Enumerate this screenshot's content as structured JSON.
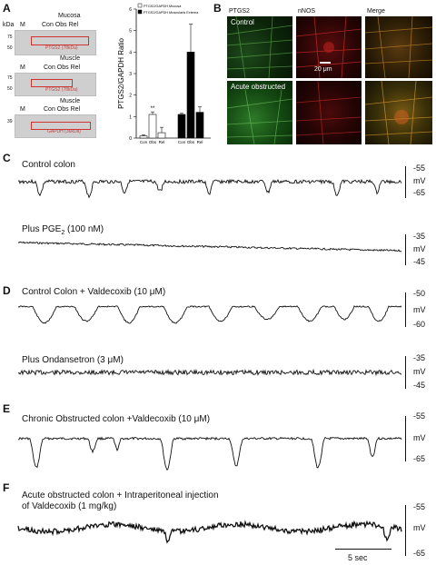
{
  "panels": {
    "A": "A",
    "B": "B",
    "C": "C",
    "D": "D",
    "E": "E",
    "F": "F"
  },
  "panelA": {
    "mucosa_title": "Mucosa",
    "muscle_title_1": "Muscle",
    "muscle_title_2": "Muscle",
    "kda": "kDa",
    "m": "M",
    "lanes": "Con Obs Rel",
    "mw1": [
      "75",
      "50"
    ],
    "mw2": [
      "75",
      "50"
    ],
    "mw3": [
      "39"
    ],
    "band1": "PTGS2 (78kDa)",
    "band2": "PTGS2 (78kDa)",
    "band3": "GAPDH (36kDa)"
  },
  "chart_data": {
    "type": "bar",
    "ylabel": "PTGS2/GAPDH Ratio",
    "ylim": [
      0,
      6
    ],
    "yticks": [
      "0",
      "1",
      "2",
      "3",
      "4",
      "5",
      "6"
    ],
    "groups": [
      {
        "categories": [
          "Con",
          "Obs",
          "Rel"
        ],
        "values": [
          0.1,
          1.1,
          0.25
        ],
        "errors": [
          0.05,
          0.12,
          0.25
        ],
        "fill": "#ffffff",
        "series": "PTGS2/GAPDH Mucosa",
        "annot": "**"
      },
      {
        "categories": [
          "Con",
          "Obs",
          "Rel"
        ],
        "values": [
          1.1,
          4.0,
          1.2
        ],
        "errors": [
          0.05,
          1.3,
          0.25
        ],
        "fill": "#000000",
        "series": "PTGS2/GAPDH Muscularis Externa"
      }
    ],
    "legend": [
      "PTGS2/GAPDH Mucosa",
      "PTGS2/GAPDH Muscularis Externa"
    ]
  },
  "panelB": {
    "col1": "PTGS2",
    "col2": "nNOS",
    "col3": "Merge",
    "row1": "Control",
    "row2": "Acute obstructed",
    "scale": "20 μm"
  },
  "traces": {
    "C1": {
      "caption": "Control colon",
      "top": "-55",
      "mid": "mV",
      "bot": "-65"
    },
    "C2": {
      "caption": "Plus PGE",
      "sub": "2",
      "caption_tail": " (100 nM)",
      "top": "-35",
      "mid": "mV",
      "bot": "-45"
    },
    "D1": {
      "caption": "Control Colon + Valdecoxib (10 μM)",
      "top": "-50",
      "mid": "mV",
      "bot": "-60"
    },
    "D2": {
      "caption": "Plus Ondansetron (3 μM)",
      "top": "-35",
      "mid": "mV",
      "bot": "-45"
    },
    "E1": {
      "caption": "Chronic Obstructed colon +Valdecoxib (10 μM)",
      "top": "-55",
      "mid": "mV",
      "bot": "-65"
    },
    "F1": {
      "caption": "Acute obstructed colon + Intraperitoneal injection",
      "caption2": "of Valdecoxib (1 mg/kg)",
      "top": "-55",
      "mid": "mV",
      "bot": "-65"
    }
  },
  "scalebar": "5 sec"
}
